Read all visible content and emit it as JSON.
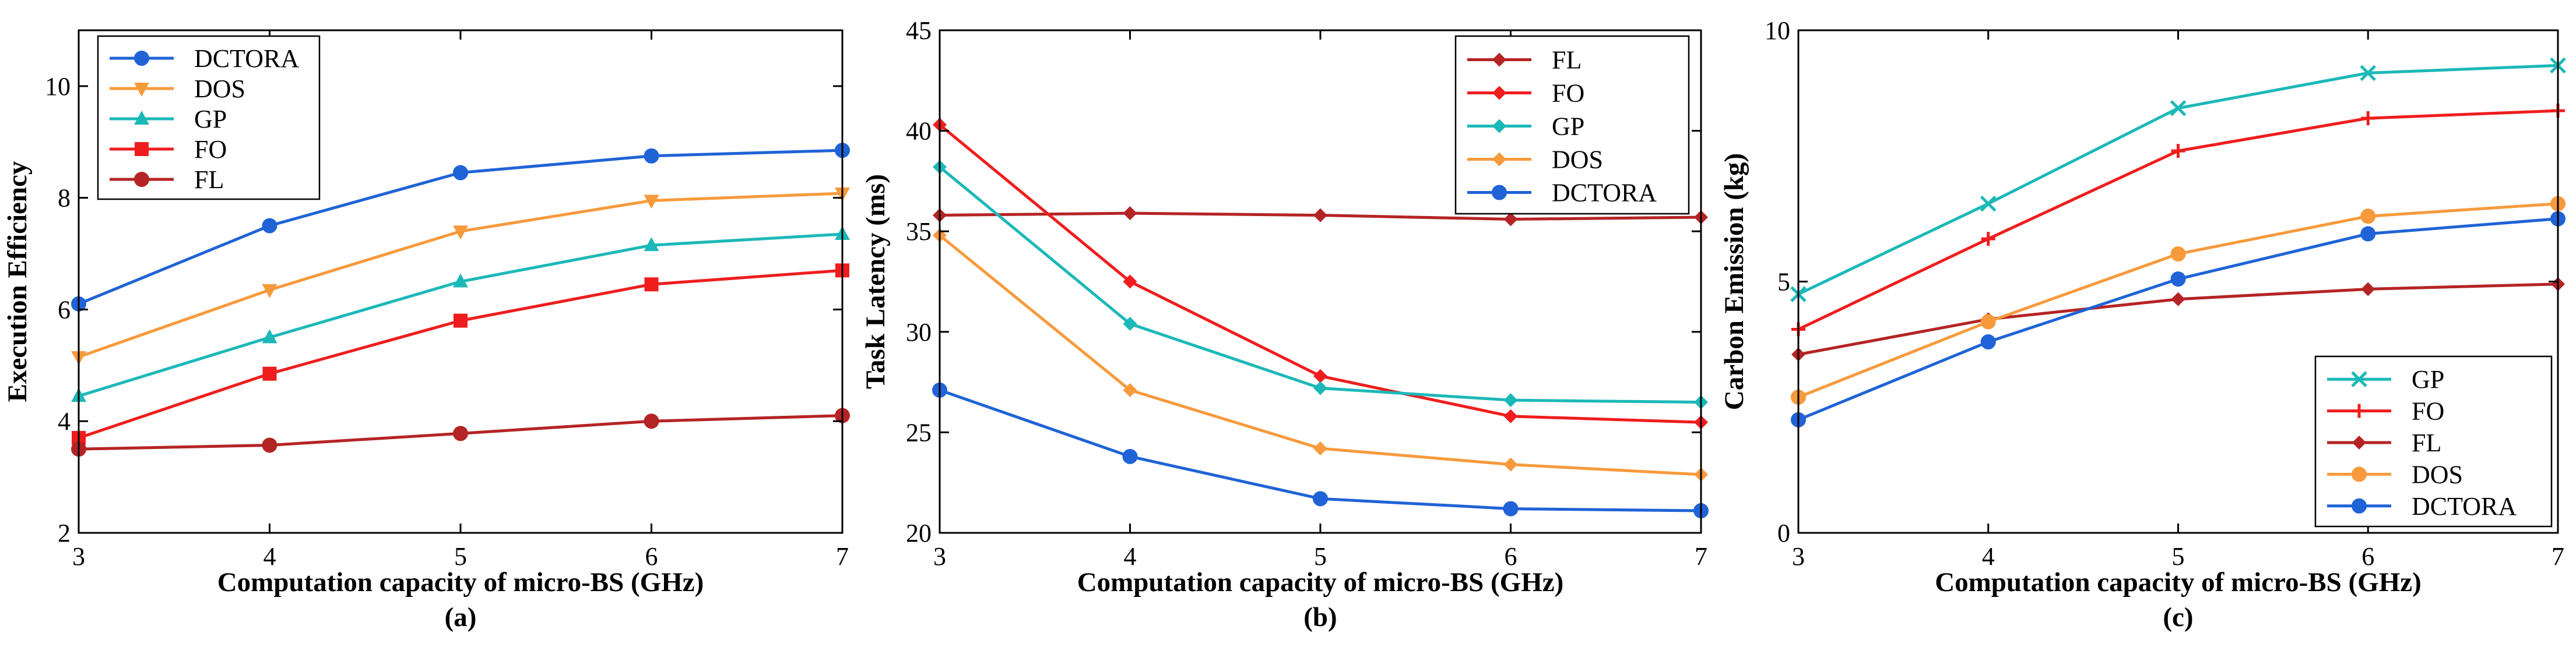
{
  "chart_data": [
    {
      "type": "line",
      "caption": "(a)",
      "xlabel": "Computation capacity of micro-BS (GHz)",
      "ylabel": "Execution Efficiency",
      "x": [
        3,
        4,
        5,
        6,
        7
      ],
      "xlim": [
        3,
        7
      ],
      "ylim": [
        2,
        11
      ],
      "xticks": [
        "3",
        "4",
        "5",
        "6",
        "7"
      ],
      "yticks": [
        2,
        4,
        6,
        8,
        10
      ],
      "ytick_labels": [
        "2",
        "4",
        "6",
        "8",
        "10"
      ],
      "legend_position": "top-left",
      "series": [
        {
          "name": "DCTORA",
          "color": "#1f63d6",
          "marker": "circle",
          "values": [
            6.1,
            7.5,
            8.45,
            8.75,
            8.85
          ]
        },
        {
          "name": "DOS",
          "color": "#f79a3c",
          "marker": "triangle-down",
          "values": [
            5.15,
            6.35,
            7.4,
            7.95,
            8.08
          ]
        },
        {
          "name": "GP",
          "color": "#1cb8b8",
          "marker": "triangle-up",
          "values": [
            4.45,
            5.5,
            6.5,
            7.15,
            7.35
          ]
        },
        {
          "name": "FO",
          "color": "#ef1d1d",
          "marker": "square",
          "values": [
            3.7,
            4.85,
            5.8,
            6.45,
            6.7
          ]
        },
        {
          "name": "FL",
          "color": "#b52424",
          "marker": "circle",
          "values": [
            3.5,
            3.57,
            3.78,
            4.0,
            4.1
          ]
        }
      ]
    },
    {
      "type": "line",
      "caption": "(b)",
      "xlabel": "Computation capacity of micro-BS (GHz)",
      "ylabel": "Task Latency (ms)",
      "x": [
        3,
        4,
        5,
        6,
        7
      ],
      "xlim": [
        3,
        7
      ],
      "ylim": [
        20,
        45
      ],
      "xticks": [
        "3",
        "4",
        "5",
        "6",
        "7"
      ],
      "yticks": [
        20,
        25,
        30,
        35,
        40,
        45
      ],
      "ytick_labels": [
        "20",
        "25",
        "30",
        "35",
        "40",
        "45"
      ],
      "legend_position": "top-right",
      "series": [
        {
          "name": "FL",
          "color": "#b52424",
          "marker": "diamond",
          "values": [
            35.8,
            35.9,
            35.8,
            35.6,
            35.7
          ]
        },
        {
          "name": "FO",
          "color": "#ef1d1d",
          "marker": "diamond",
          "values": [
            40.3,
            32.5,
            27.8,
            25.8,
            25.5
          ]
        },
        {
          "name": "GP",
          "color": "#1cb8b8",
          "marker": "diamond",
          "values": [
            38.2,
            30.4,
            27.2,
            26.6,
            26.5
          ]
        },
        {
          "name": "DOS",
          "color": "#f79a3c",
          "marker": "diamond",
          "values": [
            34.8,
            27.1,
            24.2,
            23.4,
            22.9
          ]
        },
        {
          "name": "DCTORA",
          "color": "#1f63d6",
          "marker": "circle",
          "values": [
            27.1,
            23.8,
            21.7,
            21.2,
            21.1
          ]
        }
      ]
    },
    {
      "type": "line",
      "caption": "(c)",
      "xlabel": "Computation capacity of micro-BS (GHz)",
      "ylabel": "Carbon Emission (kg)",
      "x": [
        3,
        4,
        5,
        6,
        7
      ],
      "xlim": [
        3,
        7
      ],
      "ylim": [
        0,
        10
      ],
      "xticks": [
        "3",
        "4",
        "5",
        "6",
        "7"
      ],
      "yticks": [
        0,
        5,
        10
      ],
      "ytick_labels": [
        "0",
        "5",
        "10"
      ],
      "legend_position": "bottom-right",
      "series": [
        {
          "name": "GP",
          "color": "#1cb8b8",
          "marker": "x",
          "values": [
            4.75,
            6.55,
            8.45,
            9.15,
            9.3
          ]
        },
        {
          "name": "FO",
          "color": "#ef1d1d",
          "marker": "plus",
          "values": [
            4.05,
            5.85,
            7.6,
            8.25,
            8.4
          ]
        },
        {
          "name": "FL",
          "color": "#b52424",
          "marker": "diamond",
          "values": [
            3.55,
            4.25,
            4.65,
            4.85,
            4.95
          ]
        },
        {
          "name": "DOS",
          "color": "#f79a3c",
          "marker": "circle",
          "values": [
            2.7,
            4.2,
            5.55,
            6.3,
            6.55
          ]
        },
        {
          "name": "DCTORA",
          "color": "#1f63d6",
          "marker": "circle",
          "values": [
            2.25,
            3.8,
            5.05,
            5.95,
            6.25
          ]
        }
      ]
    }
  ]
}
